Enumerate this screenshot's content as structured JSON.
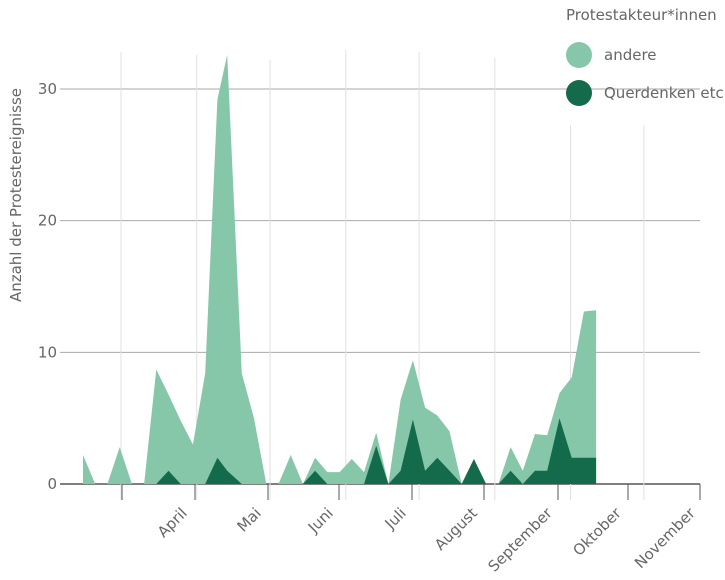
{
  "chart_data": {
    "type": "area",
    "title": "",
    "ylabel": "Anzahl der Protestereignisse",
    "xlabel": "",
    "ylim": [
      0,
      33
    ],
    "yticks": [
      0,
      10,
      20,
      30
    ],
    "month_ticks": [
      "April",
      "Mai",
      "Juni",
      "Juli",
      "August",
      "September",
      "Oktober",
      "November"
    ],
    "x_range": [
      "2020-03-01",
      "2020-11-30"
    ],
    "grid": true,
    "stacked": true,
    "legend": {
      "title": "Protestakteur*innen",
      "position": "top-right"
    },
    "series": [
      {
        "name": "andere",
        "color": "#86c7aa",
        "points": [
          [
            "2020-03-01",
            2.2
          ],
          [
            "2020-03-06",
            0
          ],
          [
            "2020-03-11",
            0
          ],
          [
            "2020-03-16",
            2.8
          ],
          [
            "2020-03-21",
            0
          ],
          [
            "2020-03-26",
            0
          ],
          [
            "2020-03-31",
            8.7
          ],
          [
            "2020-04-05",
            5.8
          ],
          [
            "2020-04-10",
            4.8
          ],
          [
            "2020-04-15",
            3.0
          ],
          [
            "2020-04-20",
            8.4
          ],
          [
            "2020-04-25",
            27.2
          ],
          [
            "2020-04-29",
            31.6
          ],
          [
            "2020-05-05",
            8.4
          ],
          [
            "2020-05-10",
            5.0
          ],
          [
            "2020-05-15",
            0
          ],
          [
            "2020-05-20",
            0
          ],
          [
            "2020-05-25",
            2.2
          ],
          [
            "2020-05-30",
            0
          ],
          [
            "2020-06-04",
            1.0
          ],
          [
            "2020-06-09",
            0.9
          ],
          [
            "2020-06-14",
            0.9
          ],
          [
            "2020-06-19",
            1.9
          ],
          [
            "2020-06-24",
            0.9
          ],
          [
            "2020-06-29",
            1.0
          ],
          [
            "2020-07-04",
            0
          ],
          [
            "2020-07-09",
            5.4
          ],
          [
            "2020-07-14",
            4.5
          ],
          [
            "2020-07-19",
            4.8
          ],
          [
            "2020-07-24",
            3.2
          ],
          [
            "2020-07-29",
            3.0
          ],
          [
            "2020-08-03",
            0
          ],
          [
            "2020-08-08",
            0
          ],
          [
            "2020-08-13",
            0
          ],
          [
            "2020-08-18",
            0
          ],
          [
            "2020-08-23",
            1.8
          ],
          [
            "2020-08-28",
            1.0
          ],
          [
            "2020-09-02",
            2.8
          ],
          [
            "2020-09-07",
            2.7
          ],
          [
            "2020-09-12",
            1.9
          ],
          [
            "2020-09-17",
            6.1
          ],
          [
            "2020-09-22",
            11.1
          ],
          [
            "2020-09-27",
            11.2
          ]
        ]
      },
      {
        "name": "Querdenken etc.",
        "color": "#146b4b",
        "points": [
          [
            "2020-03-01",
            0
          ],
          [
            "2020-03-06",
            0
          ],
          [
            "2020-03-11",
            0
          ],
          [
            "2020-03-16",
            0
          ],
          [
            "2020-03-21",
            0
          ],
          [
            "2020-03-26",
            0
          ],
          [
            "2020-03-31",
            0
          ],
          [
            "2020-04-05",
            1.0
          ],
          [
            "2020-04-10",
            0
          ],
          [
            "2020-04-15",
            0
          ],
          [
            "2020-04-20",
            0
          ],
          [
            "2020-04-25",
            2.0
          ],
          [
            "2020-04-29",
            1.0
          ],
          [
            "2020-05-05",
            0
          ],
          [
            "2020-05-10",
            0
          ],
          [
            "2020-05-15",
            0
          ],
          [
            "2020-05-20",
            0
          ],
          [
            "2020-05-25",
            0
          ],
          [
            "2020-05-30",
            0
          ],
          [
            "2020-06-04",
            1.0
          ],
          [
            "2020-06-09",
            0
          ],
          [
            "2020-06-14",
            0
          ],
          [
            "2020-06-19",
            0
          ],
          [
            "2020-06-24",
            0
          ],
          [
            "2020-06-29",
            2.9
          ],
          [
            "2020-07-04",
            0
          ],
          [
            "2020-07-09",
            1.0
          ],
          [
            "2020-07-14",
            4.9
          ],
          [
            "2020-07-19",
            1.0
          ],
          [
            "2020-07-24",
            2.0
          ],
          [
            "2020-07-29",
            1.0
          ],
          [
            "2020-08-03",
            0
          ],
          [
            "2020-08-08",
            1.9
          ],
          [
            "2020-08-13",
            0
          ],
          [
            "2020-08-18",
            0
          ],
          [
            "2020-08-23",
            1.0
          ],
          [
            "2020-08-28",
            0
          ],
          [
            "2020-09-02",
            1.0
          ],
          [
            "2020-09-07",
            1.0
          ],
          [
            "2020-09-12",
            5.0
          ],
          [
            "2020-09-17",
            2.0
          ],
          [
            "2020-09-22",
            2.0
          ],
          [
            "2020-09-27",
            2.0
          ]
        ]
      }
    ]
  }
}
